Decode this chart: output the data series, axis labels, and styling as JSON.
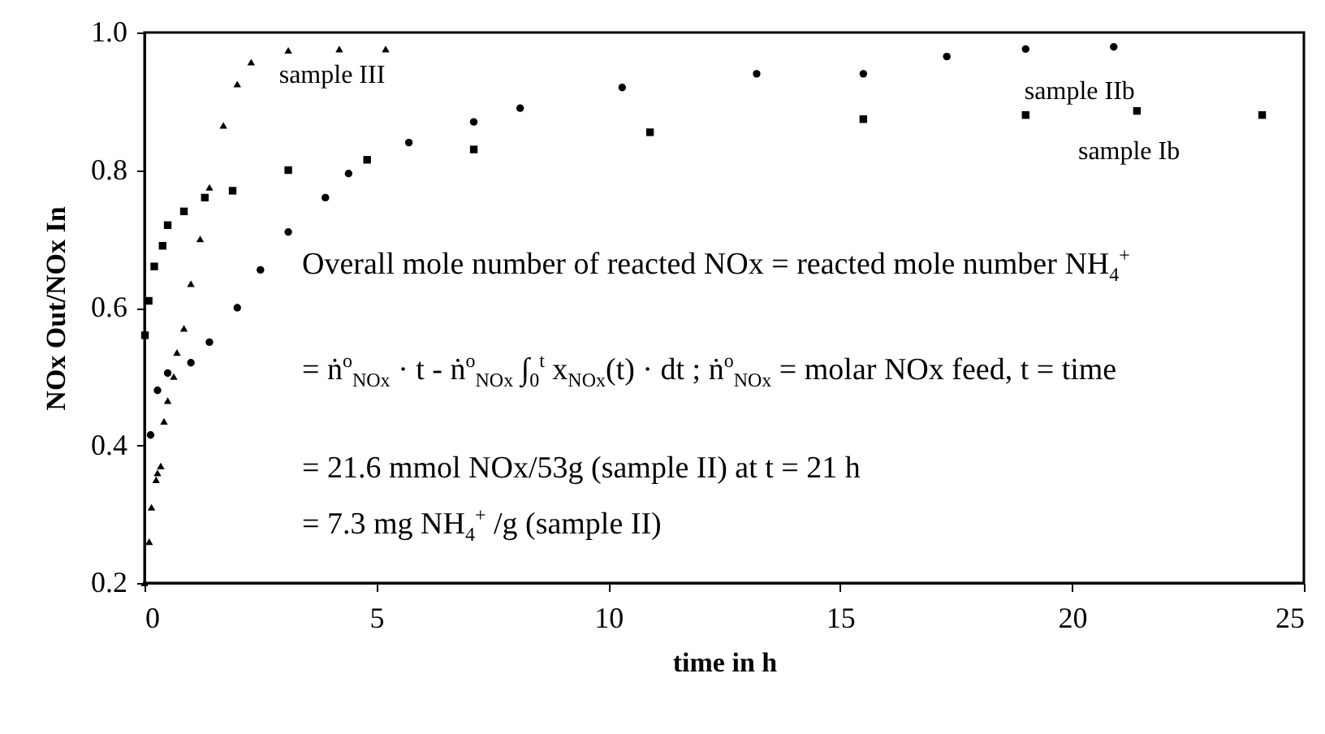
{
  "chart_data": {
    "type": "scatter",
    "xlabel": "time in h",
    "ylabel": "NOx Out/NOx In",
    "xlim": [
      0,
      25
    ],
    "ylim": [
      0.2,
      1.0
    ],
    "xticks": [
      0,
      5,
      10,
      15,
      20,
      25
    ],
    "yticks": [
      0.2,
      0.4,
      0.6,
      0.8,
      {
        "value": 1,
        "label": "1.0"
      }
    ],
    "grid": false,
    "legend": false,
    "series": [
      {
        "name": "sample III",
        "color": "#000000",
        "marker": "triangle",
        "x": [
          0,
          0.1,
          0.15,
          0.25,
          0.28,
          0.35,
          0.42,
          0.5,
          0.63,
          0.7,
          0.85,
          1.0,
          1.2,
          1.4,
          1.7,
          2.0,
          2.3,
          3.1,
          4.2,
          5.2
        ],
        "values": [
          0.2,
          0.26,
          0.31,
          0.35,
          0.36,
          0.37,
          0.435,
          0.465,
          0.5,
          0.535,
          0.57,
          0.635,
          0.7,
          0.775,
          0.865,
          0.925,
          0.957,
          0.974,
          0.976,
          0.976
        ]
      },
      {
        "name": "sample IIb",
        "color": "#000000",
        "marker": "circle",
        "x": [
          0.13,
          0.28,
          0.5,
          1.0,
          1.4,
          2.0,
          2.5,
          3.1,
          3.9,
          4.4,
          5.7,
          7.1,
          8.1,
          10.3,
          13.2,
          15.5,
          17.3,
          19.0,
          20.9
        ],
        "values": [
          0.415,
          0.48,
          0.505,
          0.52,
          0.55,
          0.6,
          0.655,
          0.71,
          0.76,
          0.795,
          0.84,
          0.87,
          0.89,
          0.92,
          0.94,
          0.94,
          0.965,
          0.976,
          0.979
        ]
      },
      {
        "name": "sample Ib",
        "color": "#000000",
        "marker": "square",
        "x": [
          0.01,
          0.09,
          0.21,
          0.39,
          0.5,
          0.85,
          1.3,
          1.9,
          3.1,
          4.8,
          7.1,
          10.9,
          15.5,
          19.0,
          21.4,
          24.1
        ],
        "values": [
          0.56,
          0.61,
          0.66,
          0.69,
          0.72,
          0.74,
          0.76,
          0.77,
          0.8,
          0.815,
          0.83,
          0.855,
          0.874,
          0.88,
          0.886,
          0.88
        ]
      }
    ],
    "annotations": [
      "Overall mole number of reacted NOx = reacted mole number NH$_{4}$$^{+}$",
      "= ṅ$^{o}$$_{NOx}$ · t - ṅ$^{o}$$_{NOx}$ ∫$_{0}$$^{t}$ x$_{NOx}$(t) · dt ; ṅ$^{o}$$_{NOx}$ = molar NOx feed, t = time",
      "= 21.6 mmol NOx/53g (sample II) at t = 21 h",
      "= 7.3 mg NH$_{4}$$^{+}$ /g (sample II)"
    ]
  }
}
